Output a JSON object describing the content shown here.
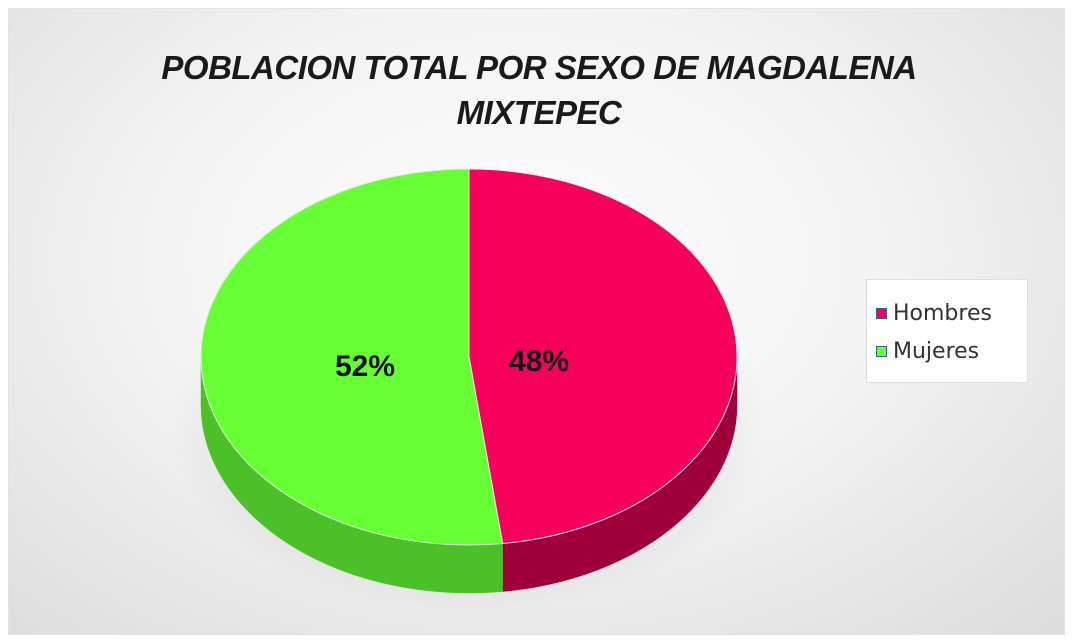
{
  "chart_data": {
    "type": "pie",
    "title": "POBLACION TOTAL POR SEXO DE MAGDALENA MIXTEPEC",
    "title_lines": [
      "POBLACION TOTAL POR SEXO DE MAGDALENA",
      "MIXTEPEC"
    ],
    "categories": [
      "Hombres",
      "Mujeres"
    ],
    "values": [
      48,
      52
    ],
    "data_labels": [
      "48%",
      "52%"
    ],
    "colors": [
      "#f5005a",
      "#66ff33"
    ],
    "side_colors": [
      "#a0003a",
      "#4cc028"
    ],
    "legend": {
      "position": "right",
      "entries": [
        "Hombres",
        "Mujeres"
      ]
    },
    "style": "3d"
  }
}
